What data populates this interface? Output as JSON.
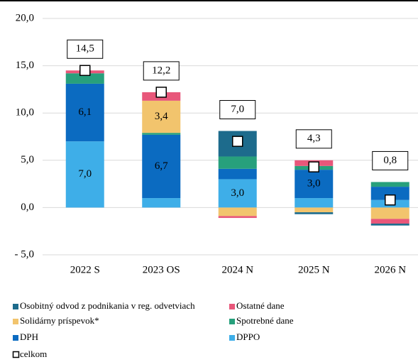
{
  "chart_data": {
    "type": "stacked_bar",
    "categories": [
      "2022 S",
      "2023 OS",
      "2024 N",
      "2025 N",
      "2026 N"
    ],
    "ylim": [
      -5,
      20
    ],
    "yticks": [
      {
        "value": -5,
        "label": "- 5,0"
      },
      {
        "value": 0,
        "label": "0,0"
      },
      {
        "value": 5,
        "label": "5,0"
      },
      {
        "value": 10,
        "label": "10,0"
      },
      {
        "value": 15,
        "label": "15,0"
      },
      {
        "value": 20,
        "label": "20,0"
      }
    ],
    "grid": true,
    "series": [
      {
        "name": "Osobitný odvod z podnikania v reg. odvetviach",
        "color": "#1d6b8c",
        "values": [
          0,
          0,
          2.7,
          -0.2,
          -0.2
        ]
      },
      {
        "name": "Ostatné dane",
        "color": "#e8577a",
        "values": [
          0.3,
          0.9,
          -0.2,
          0.6,
          -0.5
        ]
      },
      {
        "name": "Solidárny príspevok*",
        "color": "#f2c46d",
        "values": [
          0,
          3.4,
          -0.9,
          -0.5,
          -1.2
        ],
        "value_labels": [
          null,
          "3,4",
          null,
          null,
          null
        ]
      },
      {
        "name": "Spotrebné dane",
        "color": "#27a07c",
        "values": [
          1.1,
          0.2,
          1.3,
          0.4,
          0.5
        ]
      },
      {
        "name": "DPH",
        "color": "#0b6bc1",
        "values": [
          6.1,
          6.7,
          1.1,
          3.0,
          1.4
        ],
        "value_labels": [
          "6,1",
          "6,7",
          null,
          "3,0",
          null
        ]
      },
      {
        "name": "DPPO",
        "color": "#3eaee8",
        "values": [
          7.0,
          1.0,
          3.0,
          1.0,
          0.8
        ],
        "value_labels": [
          "7,0",
          null,
          "3,0",
          null,
          null
        ]
      }
    ],
    "total": {
      "name": "celkom",
      "values": [
        14.5,
        12.2,
        7.0,
        4.3,
        0.8
      ],
      "value_labels": [
        "14,5",
        "12,2",
        "7,0",
        "4,3",
        "0,8"
      ]
    }
  }
}
